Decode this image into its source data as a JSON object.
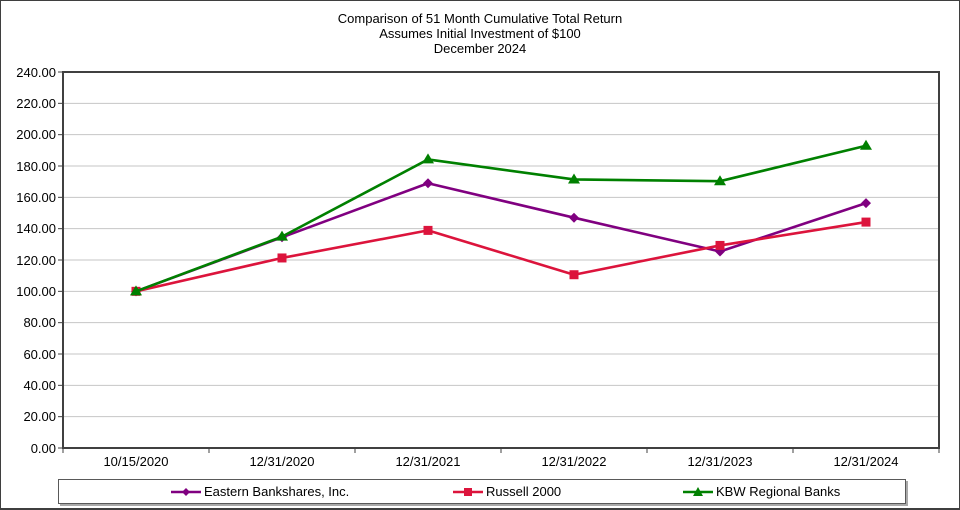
{
  "title": {
    "line1": "Comparison of 51 Month Cumulative Total Return",
    "line2": "Assumes Initial Investment of $100",
    "line3": "December 2024"
  },
  "chart_data": {
    "type": "line",
    "title": "Comparison of 51 Month Cumulative Total Return — Assumes Initial Investment of $100 — December 2024",
    "categories": [
      "10/15/2020",
      "12/31/2020",
      "12/31/2021",
      "12/31/2022",
      "12/31/2023",
      "12/31/2024"
    ],
    "series": [
      {
        "name": "Eastern Bankshares, Inc.",
        "color": "#800080",
        "marker": "diamond",
        "values": [
          100.0,
          134.5,
          169.0,
          147.0,
          125.4,
          156.3
        ]
      },
      {
        "name": "Russell 2000",
        "color": "#DC143C",
        "marker": "square",
        "values": [
          100.0,
          121.3,
          138.9,
          110.6,
          129.3,
          144.2
        ]
      },
      {
        "name": "KBW Regional Banks",
        "color": "#008000",
        "marker": "triangle",
        "values": [
          100.0,
          134.9,
          184.2,
          171.4,
          170.3,
          192.9
        ]
      }
    ],
    "xlabel": "",
    "ylabel": "",
    "ylim": [
      0,
      240
    ],
    "ytick_step": 20,
    "ytick_labels": [
      "0.00",
      "20.00",
      "40.00",
      "60.00",
      "80.00",
      "100.00",
      "120.00",
      "140.00",
      "160.00",
      "180.00",
      "200.00",
      "220.00",
      "240.00"
    ],
    "grid": "horizontal",
    "grid_color": "#c6c6c6",
    "frame_color": "#404040",
    "legend_position": "bottom"
  }
}
